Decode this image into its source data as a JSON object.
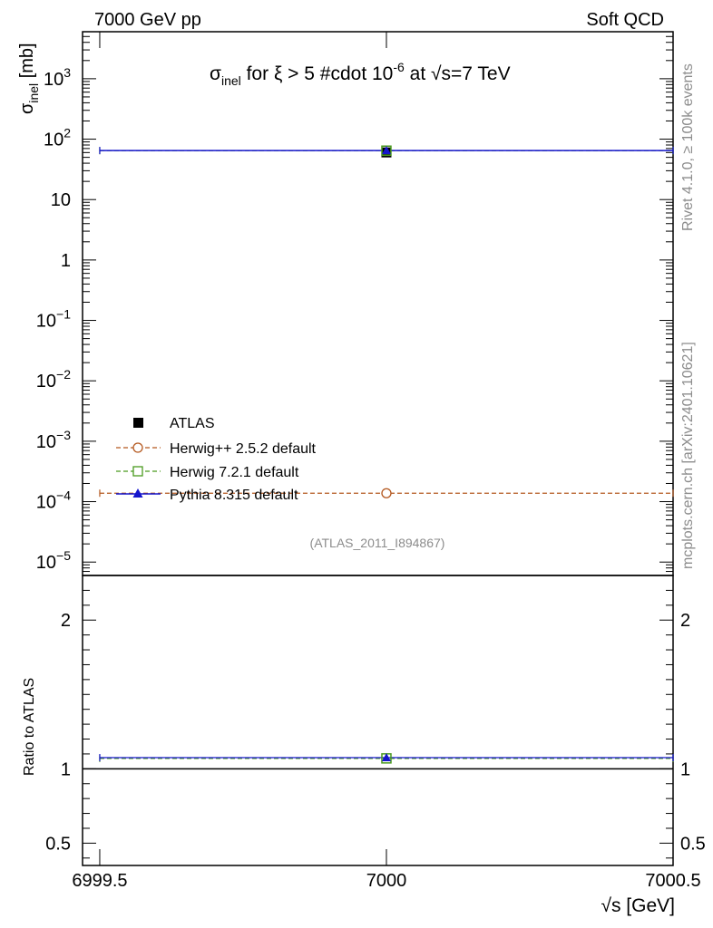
{
  "header": {
    "left": "7000 GeV pp",
    "right": "Soft QCD"
  },
  "side_labels": {
    "rivet": "Rivet 4.1.0, ≥ 100k events",
    "mcplots": "mcplots.cern.ch [arXiv:2401.10621]"
  },
  "chart_data": [
    {
      "panel": "main",
      "type": "scatter",
      "title_parts": {
        "sigma": "σ",
        "sub": "inel",
        "mid": " for ξ > 5 #cdot 10",
        "sup": "-6",
        "tail": " at √s=7 TeV"
      },
      "ylabel": "σ",
      "ylabel_sub": "inel",
      "ylabel_unit": " [mb]",
      "yscale": "log",
      "ylim": [
        6e-06,
        6000
      ],
      "xlim": [
        6999.47,
        7000.5
      ],
      "yticks": [
        {
          "value": 1000,
          "base": "10",
          "exp": "3"
        },
        {
          "value": 100,
          "base": "10",
          "exp": "2"
        },
        {
          "value": 10,
          "base": "10",
          "exp": ""
        },
        {
          "value": 1,
          "base": "1",
          "exp": ""
        },
        {
          "value": 0.1,
          "base": "10",
          "exp": "−1"
        },
        {
          "value": 0.01,
          "base": "10",
          "exp": "−2"
        },
        {
          "value": 0.001,
          "base": "10",
          "exp": "−3"
        },
        {
          "value": 0.0001,
          "base": "10",
          "exp": "−4"
        },
        {
          "value": 1e-05,
          "base": "10",
          "exp": "−5"
        }
      ],
      "watermark": "(ATLAS_2011_I894867)",
      "series": [
        {
          "name": "ATLAS",
          "marker": "square-filled",
          "color": "#000000",
          "x": [
            7000
          ],
          "y": [
            60.3
          ]
        },
        {
          "name": "Herwig++ 2.5.2 default",
          "marker": "circle-open",
          "color": "#b4581f",
          "linestyle": "dashed",
          "x": [
            7000
          ],
          "y": [
            0.000138
          ]
        },
        {
          "name": "Herwig 7.2.1 default",
          "marker": "square-open",
          "color": "#4a9a1f",
          "linestyle": "dashed",
          "x": [
            7000
          ],
          "y": [
            64.5
          ]
        },
        {
          "name": "Pythia 8.315 default",
          "marker": "triangle-filled",
          "color": "#1515cc",
          "linestyle": "solid",
          "x": [
            7000
          ],
          "y": [
            64.8
          ]
        }
      ],
      "legend_placement": "left-lower"
    },
    {
      "panel": "ratio",
      "type": "line",
      "ylabel": "Ratio to ATLAS",
      "ylim": [
        0.35,
        2.3
      ],
      "yticks": [
        {
          "value": 0.5,
          "label": "0.5"
        },
        {
          "value": 1,
          "label": "1"
        },
        {
          "value": 2,
          "label": "2"
        }
      ],
      "xticks": [
        {
          "value": 6999.5,
          "label": "6999.5"
        },
        {
          "value": 7000,
          "label": "7000"
        },
        {
          "value": 7000.5,
          "label": "7000.5"
        }
      ],
      "xlabel": "√s [GeV]",
      "series": [
        {
          "name": "Herwig 7.2.1 default",
          "color": "#4a9a1f",
          "x": [
            7000
          ],
          "y": [
            1.07
          ]
        },
        {
          "name": "Pythia 8.315 default",
          "color": "#1515cc",
          "x": [
            7000
          ],
          "y": [
            1.075
          ]
        }
      ]
    }
  ]
}
